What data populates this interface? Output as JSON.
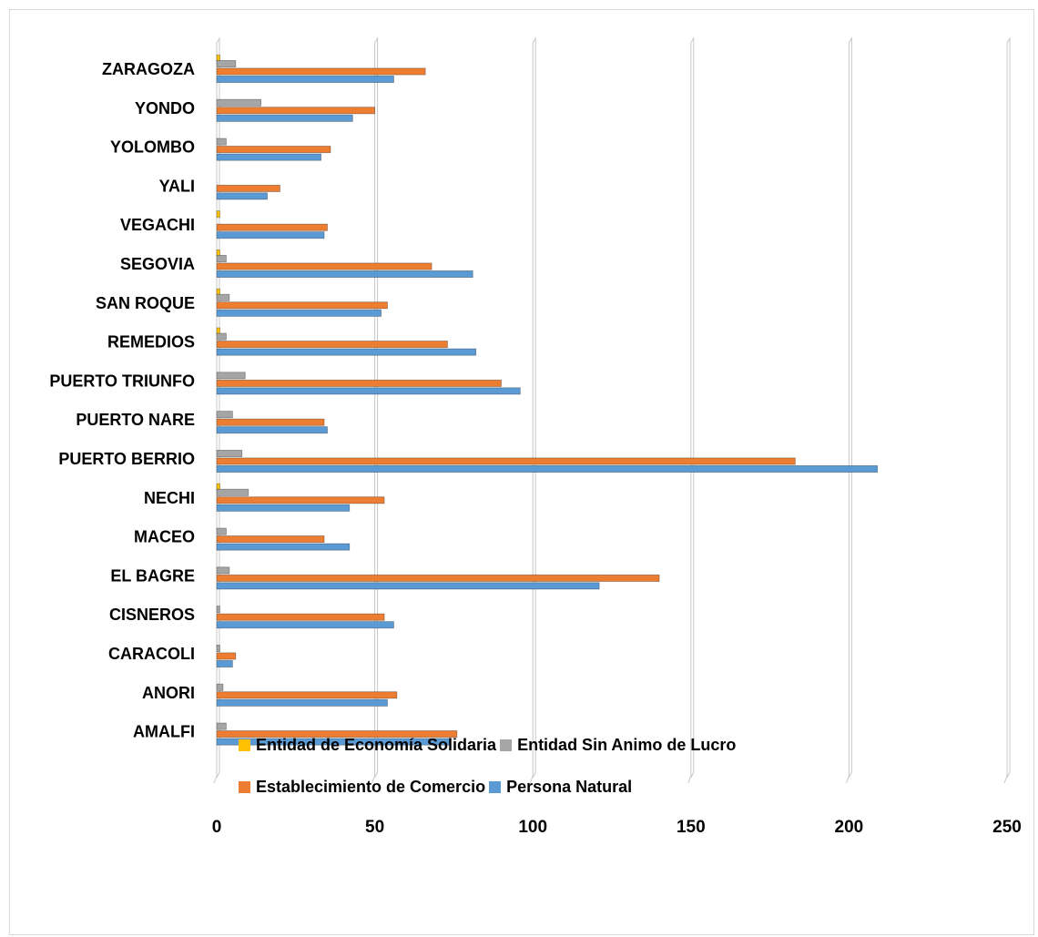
{
  "chart_data": {
    "type": "bar",
    "orientation": "horizontal",
    "title": "",
    "xlabel": "",
    "ylabel": "",
    "xlim": [
      0,
      250
    ],
    "x_ticks": [
      "0",
      "50",
      "100",
      "150",
      "200",
      "250"
    ],
    "grid": "vertical gridlines",
    "legend_position": "bottom",
    "categories": [
      "ZARAGOZA",
      "YONDO",
      "YOLOMBO",
      "YALI",
      "VEGACHI",
      "SEGOVIA",
      "SAN ROQUE",
      "REMEDIOS",
      "PUERTO TRIUNFO",
      "PUERTO NARE",
      "PUERTO BERRIO",
      "NECHI",
      "MACEO",
      "EL BAGRE",
      "CISNEROS",
      "CARACOLI",
      "ANORI",
      "AMALFI"
    ],
    "series": [
      {
        "name": "Entidad de Economía Solidaria",
        "color": "#FFC000",
        "values": [
          1,
          0,
          0,
          0,
          1,
          1,
          1,
          1,
          0,
          0,
          0,
          1,
          0,
          0,
          0,
          0,
          0,
          0
        ]
      },
      {
        "name": "Entidad Sin Animo de Lucro",
        "color": "#A5A5A5",
        "values": [
          6,
          14,
          3,
          0,
          0,
          3,
          4,
          3,
          9,
          5,
          8,
          10,
          3,
          4,
          1,
          1,
          2,
          3
        ]
      },
      {
        "name": "Establecimiento de Comercio",
        "color": "#ED7D31",
        "values": [
          66,
          50,
          36,
          20,
          35,
          68,
          54,
          73,
          90,
          34,
          183,
          53,
          34,
          140,
          53,
          6,
          57,
          76
        ]
      },
      {
        "name": "Persona Natural",
        "color": "#5B9BD5",
        "values": [
          56,
          43,
          33,
          16,
          34,
          81,
          52,
          82,
          96,
          35,
          209,
          42,
          42,
          121,
          56,
          5,
          54,
          74
        ]
      }
    ]
  }
}
